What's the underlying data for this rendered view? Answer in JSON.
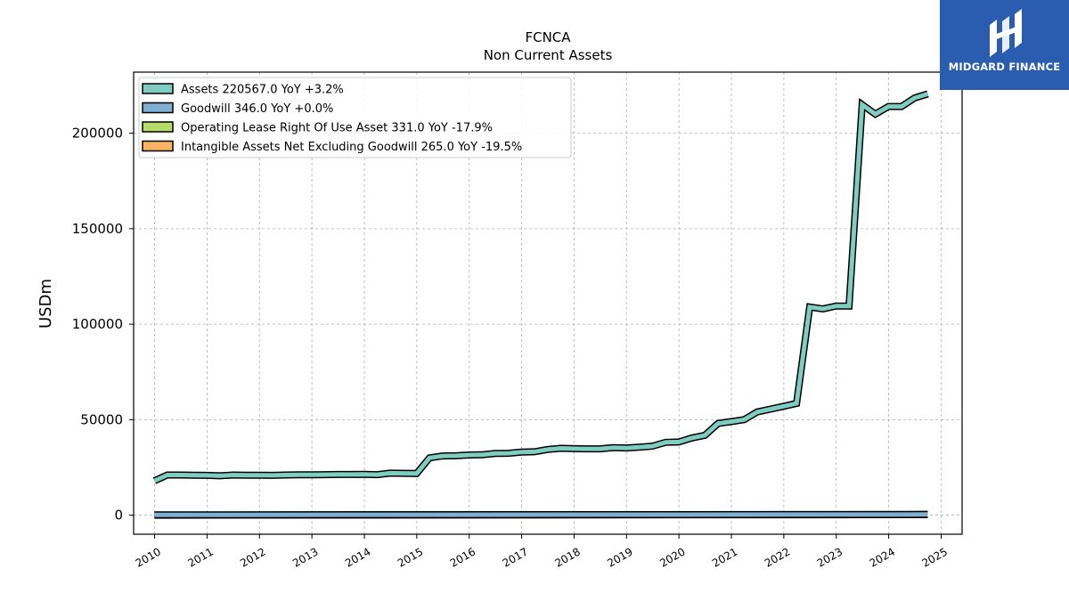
{
  "chart_data": {
    "type": "line",
    "title": "FCNCA",
    "subtitle": "Non Current  Assets",
    "ylabel": "USDm",
    "xlabel": "",
    "xlim": [
      2009.6,
      2025.4
    ],
    "ylim": [
      -10000,
      232000
    ],
    "x_ticks": [
      "2010",
      "2011",
      "2012",
      "2013",
      "2014",
      "2015",
      "2016",
      "2017",
      "2018",
      "2019",
      "2020",
      "2021",
      "2022",
      "2023",
      "2024",
      "2025"
    ],
    "y_ticks": [
      "0",
      "50000",
      "100000",
      "150000",
      "200000"
    ],
    "y_tick_values": [
      0,
      50000,
      100000,
      150000,
      200000
    ],
    "grid": true,
    "legend_position": "top-left",
    "series": [
      {
        "name": "Assets  220567.0 YoY +3.2%",
        "color": "#7fcdc1",
        "x": [
          "2009-12-31",
          "2010-03-31",
          "2010-06-30",
          "2010-09-30",
          "2010-12-31",
          "2011-03-31",
          "2011-06-30",
          "2011-09-30",
          "2011-12-31",
          "2012-03-31",
          "2012-06-30",
          "2012-09-30",
          "2012-12-31",
          "2013-03-31",
          "2013-06-30",
          "2013-09-30",
          "2013-12-31",
          "2014-03-31",
          "2014-06-30",
          "2014-09-30",
          "2014-12-31",
          "2015-03-31",
          "2015-06-30",
          "2015-09-30",
          "2015-12-31",
          "2016-03-31",
          "2016-06-30",
          "2016-09-30",
          "2016-12-31",
          "2017-03-31",
          "2017-06-30",
          "2017-09-30",
          "2017-12-31",
          "2018-03-31",
          "2018-06-30",
          "2018-09-30",
          "2018-12-31",
          "2019-03-31",
          "2019-06-30",
          "2019-09-30",
          "2019-12-31",
          "2020-03-31",
          "2020-06-30",
          "2020-09-30",
          "2020-12-31",
          "2021-03-31",
          "2021-06-30",
          "2021-09-30",
          "2021-12-31",
          "2022-03-31",
          "2022-06-30",
          "2022-09-30",
          "2022-12-31",
          "2023-03-31",
          "2023-06-30",
          "2023-09-30",
          "2023-12-31",
          "2024-03-31",
          "2024-06-30",
          "2024-09-30"
        ],
        "values": [
          18000,
          21000,
          21000,
          20900,
          20800,
          20600,
          21000,
          20900,
          20900,
          20800,
          21000,
          21100,
          21100,
          21200,
          21300,
          21300,
          21400,
          21200,
          22000,
          21900,
          21800,
          30000,
          31000,
          31100,
          31500,
          31600,
          32300,
          32400,
          33000,
          33200,
          34400,
          35000,
          34800,
          34700,
          34700,
          35300,
          35200,
          35600,
          36100,
          38100,
          38300,
          40400,
          41800,
          48000,
          49000,
          50000,
          54000,
          55500,
          57000,
          58500,
          109000,
          108000,
          109500,
          109500,
          215000,
          210000,
          214000,
          214000,
          218500,
          220567
        ]
      },
      {
        "name": "Goodwill  346.0 YoY +0.0%",
        "color": "#7fafd1",
        "x": [
          "2009-12-31",
          "2024-09-30"
        ],
        "values": [
          102,
          346
        ]
      },
      {
        "name": "Operating Lease Right Of Use Asset  331.0 YoY -17.9%",
        "color": "#b5dc68",
        "x": [
          "2009-12-31",
          "2024-09-30"
        ],
        "values": [
          0,
          331
        ]
      },
      {
        "name": "Intangible Assets Net Excluding Goodwill  265.0 YoY -19.5%",
        "color": "#fdb462",
        "x": [
          "2009-12-31",
          "2024-09-30"
        ],
        "values": [
          40,
          265
        ]
      }
    ]
  },
  "branding": {
    "logo_text": "MIDGARD FINANCE",
    "logo_color": "#2a5db0"
  }
}
